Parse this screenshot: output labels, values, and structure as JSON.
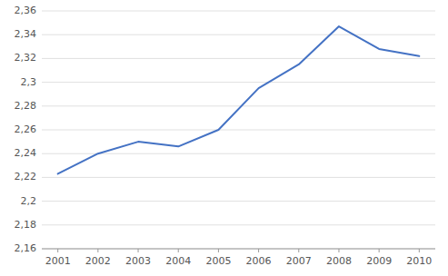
{
  "chart_data": {
    "type": "line",
    "x": [
      2001,
      2002,
      2003,
      2004,
      2005,
      2006,
      2007,
      2008,
      2009,
      2010
    ],
    "values": [
      2.223,
      2.24,
      2.25,
      2.246,
      2.26,
      2.295,
      2.315,
      2.347,
      2.328,
      2.322
    ],
    "color": "#4472C4",
    "xlim": [
      2000.6,
      2010.4
    ],
    "xticks": [
      2001,
      2002,
      2003,
      2004,
      2005,
      2006,
      2007,
      2008,
      2009,
      2010
    ],
    "ylim": [
      2.16,
      2.36
    ],
    "yticks": [
      {
        "value": 2.16,
        "label": "2,16"
      },
      {
        "value": 2.18,
        "label": "2,18"
      },
      {
        "value": 2.2,
        "label": "2,2"
      },
      {
        "value": 2.22,
        "label": "2,22"
      },
      {
        "value": 2.24,
        "label": "2,24"
      },
      {
        "value": 2.26,
        "label": "2,26"
      },
      {
        "value": 2.28,
        "label": "2,28"
      },
      {
        "value": 2.3,
        "label": "2,3"
      },
      {
        "value": 2.32,
        "label": "2,32"
      },
      {
        "value": 2.34,
        "label": "2,34"
      },
      {
        "value": 2.36,
        "label": "2,36"
      }
    ],
    "grid": true
  }
}
